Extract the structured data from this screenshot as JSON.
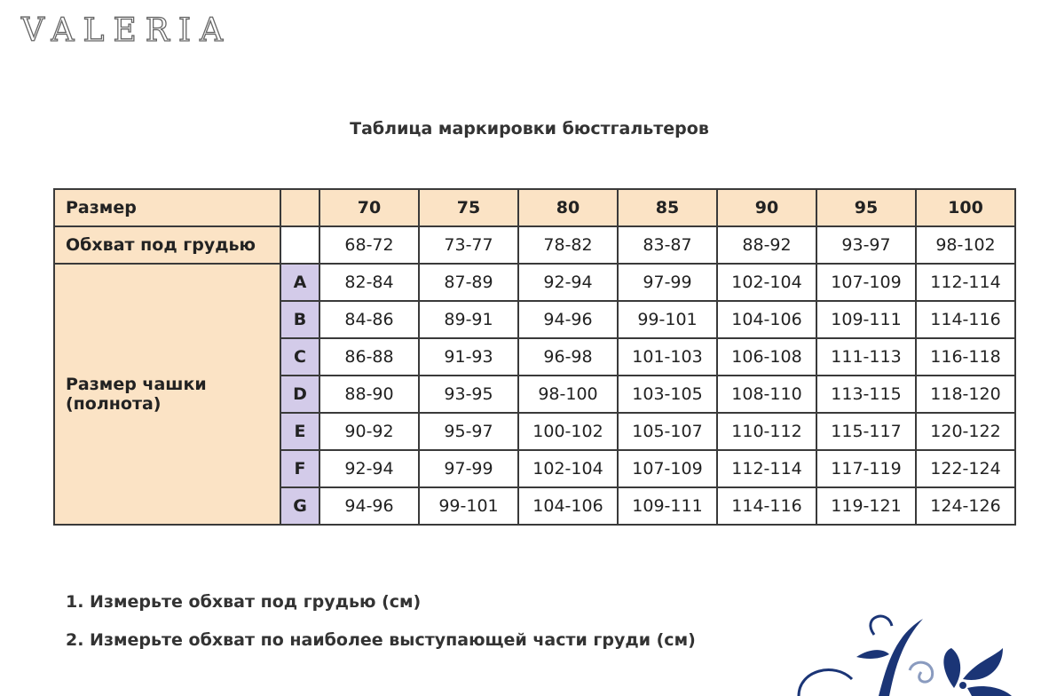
{
  "logo": "VALERIA",
  "title": "Таблица маркировки бюстгальтеров",
  "table": {
    "size_label": "Размер",
    "sizes": [
      "70",
      "75",
      "80",
      "85",
      "90",
      "95",
      "100"
    ],
    "underbust_label": "Обхват под грудью",
    "underbust": [
      "68-72",
      "73-77",
      "78-82",
      "83-87",
      "88-92",
      "93-97",
      "98-102"
    ],
    "cup_label_line1": "Размер чашки",
    "cup_label_line2": "(полнота)",
    "cups": [
      {
        "cup": "A",
        "values": [
          "82-84",
          "87-89",
          "92-94",
          "97-99",
          "102-104",
          "107-109",
          "112-114"
        ]
      },
      {
        "cup": "B",
        "values": [
          "84-86",
          "89-91",
          "94-96",
          "99-101",
          "104-106",
          "109-111",
          "114-116"
        ]
      },
      {
        "cup": "C",
        "values": [
          "86-88",
          "91-93",
          "96-98",
          "101-103",
          "106-108",
          "111-113",
          "116-118"
        ]
      },
      {
        "cup": "D",
        "values": [
          "88-90",
          "93-95",
          "98-100",
          "103-105",
          "108-110",
          "113-115",
          "118-120"
        ]
      },
      {
        "cup": "E",
        "values": [
          "90-92",
          "95-97",
          "100-102",
          "105-107",
          "110-112",
          "115-117",
          "120-122"
        ]
      },
      {
        "cup": "F",
        "values": [
          "92-94",
          "97-99",
          "102-104",
          "107-109",
          "112-114",
          "117-119",
          "122-124"
        ]
      },
      {
        "cup": "G",
        "values": [
          "94-96",
          "99-101",
          "104-106",
          "109-111",
          "114-116",
          "119-121",
          "124-126"
        ]
      }
    ]
  },
  "notes": [
    "1. Измерьте обхват под грудью (см)",
    "2. Измерьте обхват по наиболее выступающей части груди (см)"
  ],
  "colors": {
    "header_bg": "#fbe3c5",
    "cup_bg": "#d3cbe9",
    "ornament": "#1b3576"
  }
}
